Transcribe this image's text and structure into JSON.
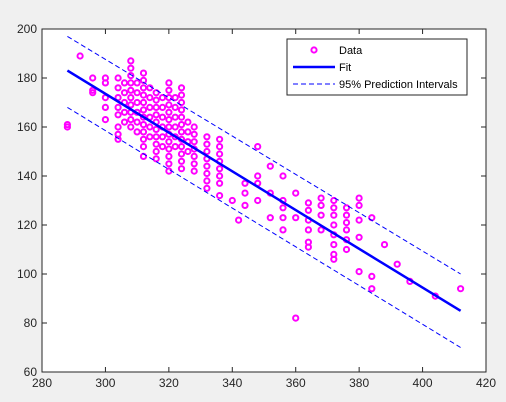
{
  "chart_data": {
    "type": "scatter",
    "title": "",
    "xlabel": "",
    "ylabel": "",
    "xlim": [
      280,
      420
    ],
    "ylim": [
      60,
      200
    ],
    "x_ticks": [
      "280",
      "300",
      "320",
      "340",
      "360",
      "380",
      "400",
      "420"
    ],
    "y_ticks": [
      "60",
      "80",
      "100",
      "120",
      "140",
      "160",
      "180",
      "200"
    ],
    "grid": false,
    "legend_position": "top-right",
    "series": [
      {
        "name": "Data",
        "kind": "scatter",
        "marker": "o",
        "color": "#ff00ff",
        "points": [
          [
            288,
            161
          ],
          [
            288,
            160
          ],
          [
            292,
            189
          ],
          [
            296,
            180
          ],
          [
            296,
            175
          ],
          [
            296,
            174
          ],
          [
            300,
            180
          ],
          [
            300,
            178
          ],
          [
            300,
            172
          ],
          [
            300,
            168
          ],
          [
            300,
            163
          ],
          [
            304,
            180
          ],
          [
            304,
            176
          ],
          [
            304,
            172
          ],
          [
            304,
            168
          ],
          [
            304,
            165
          ],
          [
            304,
            160
          ],
          [
            304,
            157
          ],
          [
            304,
            155
          ],
          [
            306,
            178
          ],
          [
            306,
            174
          ],
          [
            306,
            170
          ],
          [
            306,
            166
          ],
          [
            306,
            162
          ],
          [
            308,
            187
          ],
          [
            308,
            184
          ],
          [
            308,
            181
          ],
          [
            308,
            178
          ],
          [
            308,
            175
          ],
          [
            308,
            172
          ],
          [
            308,
            169
          ],
          [
            308,
            166
          ],
          [
            308,
            163
          ],
          [
            308,
            160
          ],
          [
            310,
            178
          ],
          [
            310,
            174
          ],
          [
            310,
            170
          ],
          [
            310,
            166
          ],
          [
            310,
            162
          ],
          [
            310,
            158
          ],
          [
            312,
            182
          ],
          [
            312,
            179
          ],
          [
            312,
            176
          ],
          [
            312,
            173
          ],
          [
            312,
            170
          ],
          [
            312,
            167
          ],
          [
            312,
            164
          ],
          [
            312,
            161
          ],
          [
            312,
            158
          ],
          [
            312,
            155
          ],
          [
            312,
            152
          ],
          [
            312,
            148
          ],
          [
            314,
            176
          ],
          [
            314,
            172
          ],
          [
            314,
            168
          ],
          [
            314,
            164
          ],
          [
            314,
            160
          ],
          [
            314,
            156
          ],
          [
            316,
            174
          ],
          [
            316,
            171
          ],
          [
            316,
            168
          ],
          [
            316,
            165
          ],
          [
            316,
            162
          ],
          [
            316,
            159
          ],
          [
            316,
            156
          ],
          [
            316,
            153
          ],
          [
            316,
            150
          ],
          [
            316,
            147
          ],
          [
            318,
            172
          ],
          [
            318,
            168
          ],
          [
            318,
            164
          ],
          [
            318,
            160
          ],
          [
            318,
            156
          ],
          [
            318,
            152
          ],
          [
            320,
            178
          ],
          [
            320,
            175
          ],
          [
            320,
            172
          ],
          [
            320,
            169
          ],
          [
            320,
            166
          ],
          [
            320,
            163
          ],
          [
            320,
            160
          ],
          [
            320,
            157
          ],
          [
            320,
            154
          ],
          [
            320,
            151
          ],
          [
            320,
            148
          ],
          [
            320,
            145
          ],
          [
            320,
            142
          ],
          [
            322,
            172
          ],
          [
            322,
            168
          ],
          [
            322,
            164
          ],
          [
            322,
            160
          ],
          [
            322,
            156
          ],
          [
            322,
            152
          ],
          [
            324,
            176
          ],
          [
            324,
            173
          ],
          [
            324,
            170
          ],
          [
            324,
            167
          ],
          [
            324,
            164
          ],
          [
            324,
            161
          ],
          [
            324,
            158
          ],
          [
            324,
            155
          ],
          [
            324,
            152
          ],
          [
            324,
            149
          ],
          [
            324,
            146
          ],
          [
            324,
            143
          ],
          [
            326,
            162
          ],
          [
            326,
            158
          ],
          [
            326,
            154
          ],
          [
            326,
            150
          ],
          [
            328,
            160
          ],
          [
            328,
            157
          ],
          [
            328,
            154
          ],
          [
            328,
            151
          ],
          [
            328,
            148
          ],
          [
            328,
            145
          ],
          [
            328,
            142
          ],
          [
            332,
            156
          ],
          [
            332,
            153
          ],
          [
            332,
            150
          ],
          [
            332,
            147
          ],
          [
            332,
            144
          ],
          [
            332,
            141
          ],
          [
            332,
            138
          ],
          [
            332,
            135
          ],
          [
            336,
            155
          ],
          [
            336,
            152
          ],
          [
            336,
            149
          ],
          [
            336,
            146
          ],
          [
            336,
            143
          ],
          [
            336,
            140
          ],
          [
            336,
            137
          ],
          [
            336,
            132
          ],
          [
            340,
            130
          ],
          [
            342,
            122
          ],
          [
            344,
            137
          ],
          [
            344,
            133
          ],
          [
            344,
            128
          ],
          [
            348,
            152
          ],
          [
            348,
            140
          ],
          [
            348,
            137
          ],
          [
            348,
            130
          ],
          [
            352,
            144
          ],
          [
            352,
            133
          ],
          [
            352,
            123
          ],
          [
            356,
            140
          ],
          [
            356,
            130
          ],
          [
            356,
            127
          ],
          [
            356,
            123
          ],
          [
            356,
            118
          ],
          [
            360,
            133
          ],
          [
            360,
            123
          ],
          [
            360,
            82
          ],
          [
            364,
            129
          ],
          [
            364,
            126
          ],
          [
            364,
            122
          ],
          [
            364,
            118
          ],
          [
            364,
            113
          ],
          [
            364,
            111
          ],
          [
            368,
            131
          ],
          [
            368,
            128
          ],
          [
            368,
            124
          ],
          [
            368,
            118
          ],
          [
            372,
            130
          ],
          [
            372,
            127
          ],
          [
            372,
            124
          ],
          [
            372,
            120
          ],
          [
            372,
            116
          ],
          [
            372,
            112
          ],
          [
            372,
            108
          ],
          [
            372,
            106
          ],
          [
            376,
            127
          ],
          [
            376,
            124
          ],
          [
            376,
            121
          ],
          [
            376,
            118
          ],
          [
            376,
            114
          ],
          [
            376,
            110
          ],
          [
            380,
            131
          ],
          [
            380,
            128
          ],
          [
            380,
            122
          ],
          [
            380,
            115
          ],
          [
            380,
            101
          ],
          [
            384,
            123
          ],
          [
            384,
            99
          ],
          [
            384,
            94
          ],
          [
            388,
            112
          ],
          [
            392,
            104
          ],
          [
            396,
            97
          ],
          [
            404,
            91
          ],
          [
            412,
            94
          ]
        ]
      },
      {
        "name": "Fit",
        "kind": "line",
        "color": "#0000ff",
        "line_style": "solid",
        "points": [
          [
            288,
            183
          ],
          [
            412,
            85
          ]
        ]
      },
      {
        "name": "95% Prediction Intervals",
        "kind": "line",
        "color": "#0000ff",
        "line_style": "dashed",
        "legend": true,
        "points": [
          [
            288,
            197
          ],
          [
            412,
            100
          ]
        ]
      },
      {
        "name": "",
        "kind": "line",
        "color": "#0000ff",
        "line_style": "dashed",
        "legend": false,
        "points": [
          [
            288,
            168
          ],
          [
            412,
            70
          ]
        ]
      }
    ]
  },
  "colors": {
    "figure_background": "#f0f0f0",
    "axes_background": "#ffffff",
    "axis_color": "#262626",
    "data_marker": "#ff00ff",
    "fit_line": "#0000ff"
  }
}
